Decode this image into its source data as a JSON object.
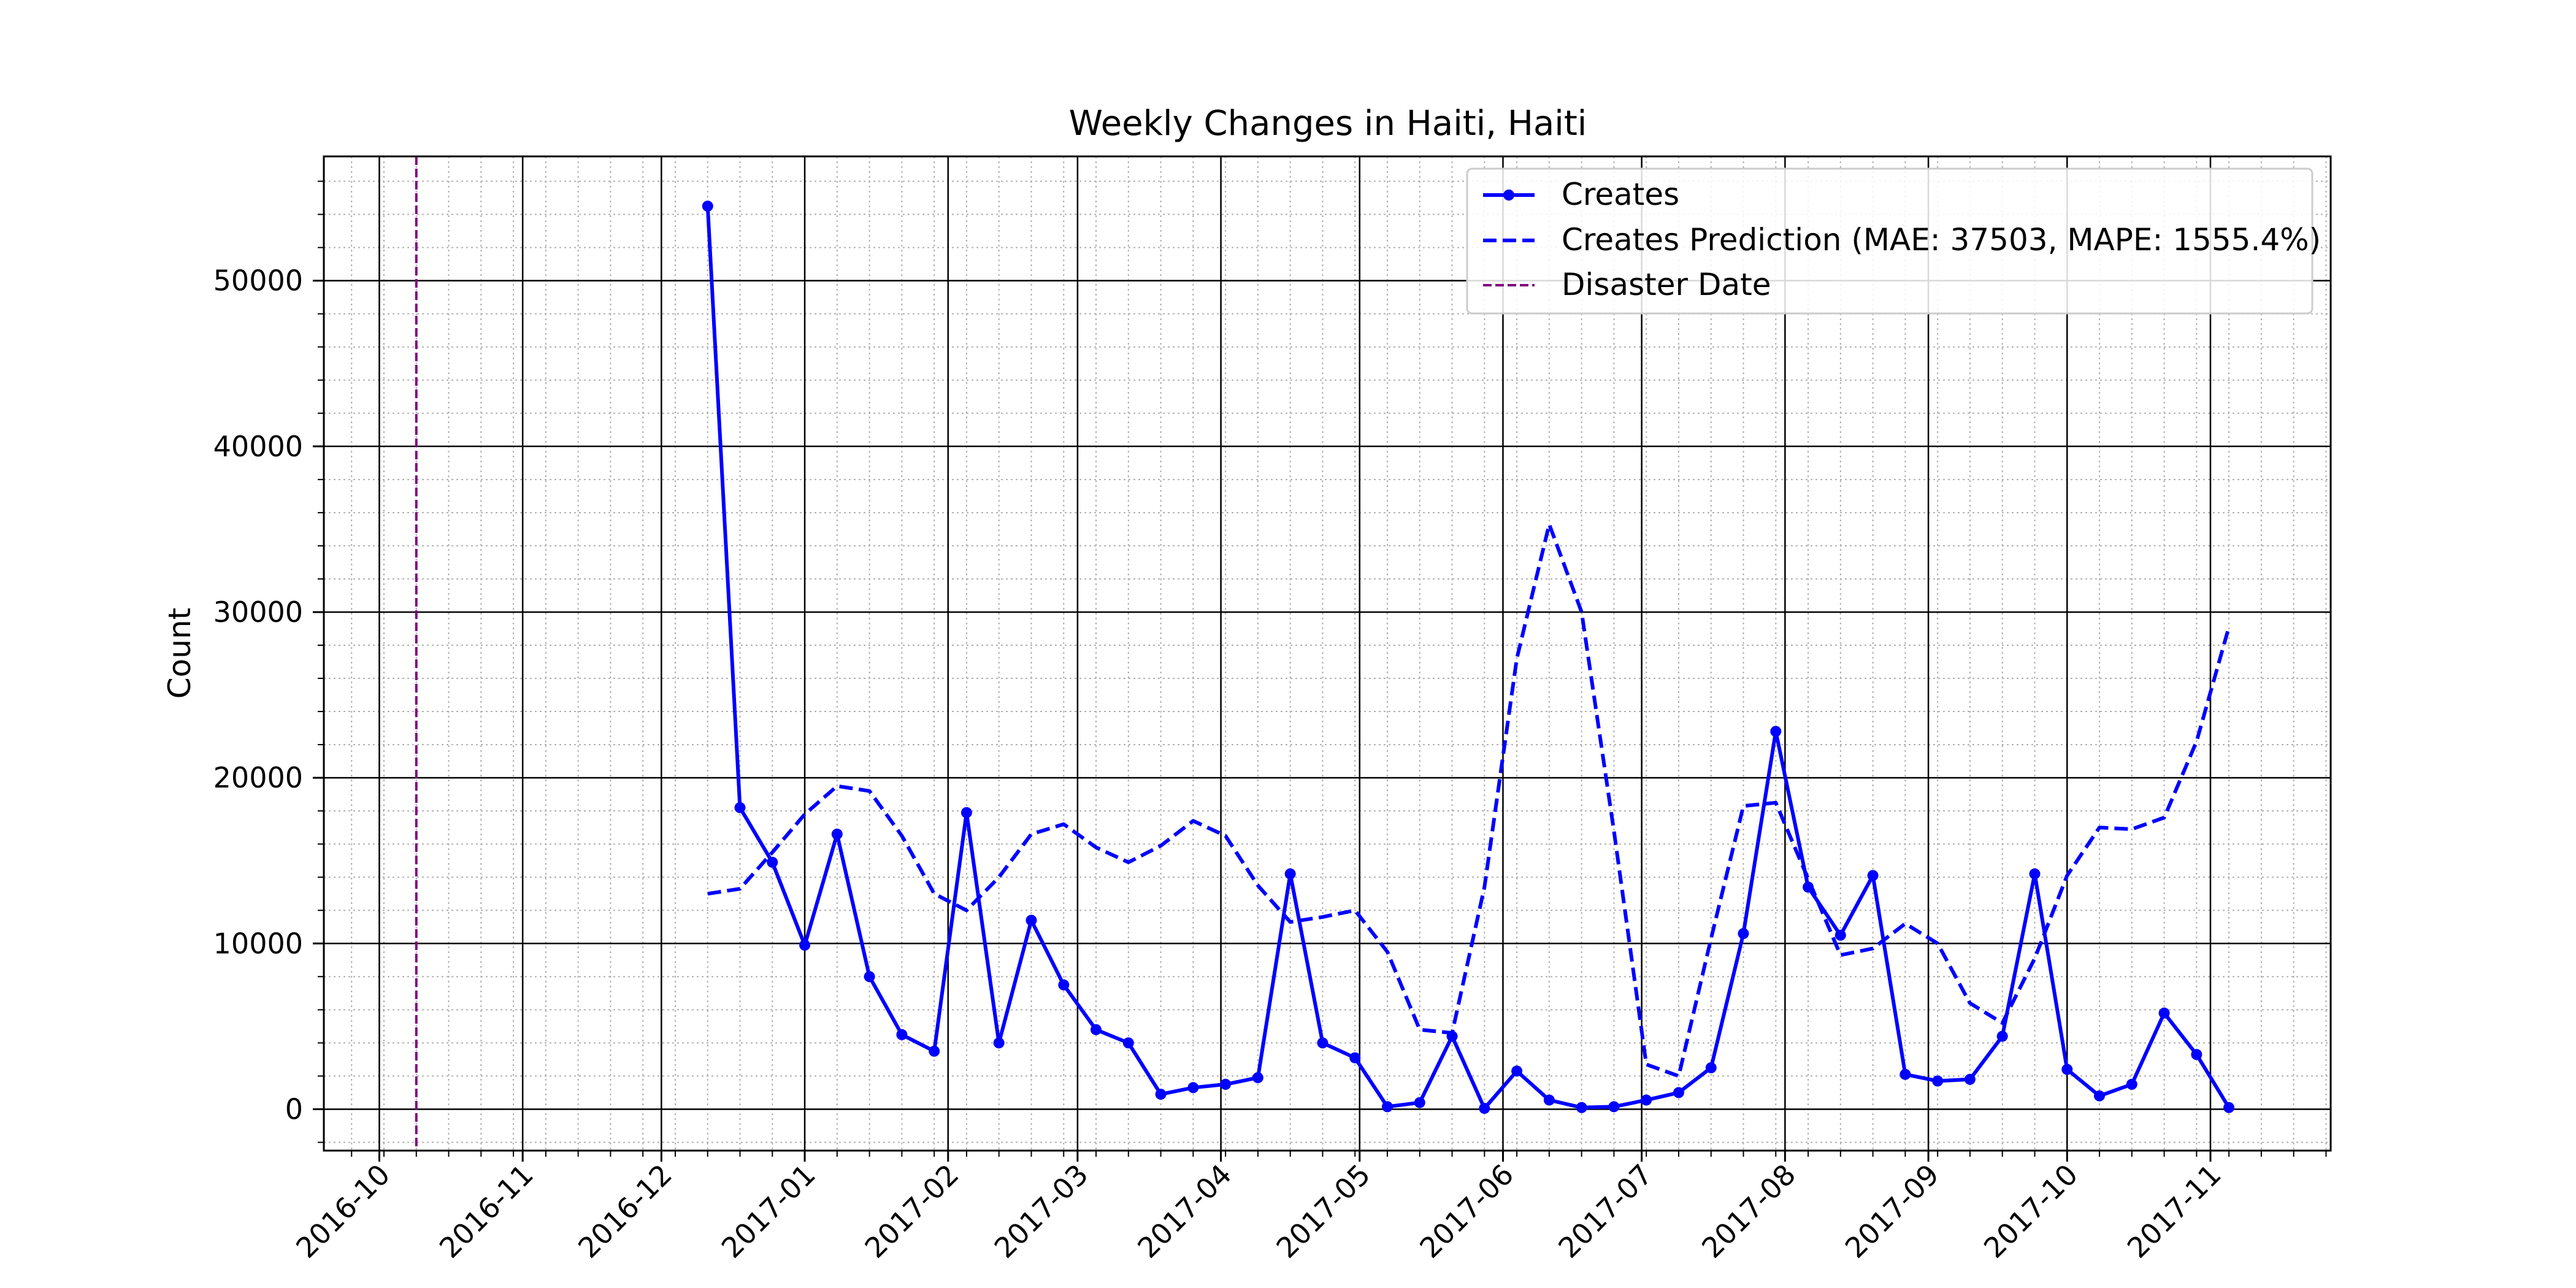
{
  "chart_data": {
    "type": "line",
    "title": "Weekly Changes in Haiti, Haiti",
    "xlabel": "",
    "ylabel": "Count",
    "x_tick_labels": [
      "2016-10",
      "2016-11",
      "2016-12",
      "2017-01",
      "2017-02",
      "2017-03",
      "2017-04",
      "2017-05",
      "2017-06",
      "2017-07",
      "2017-08",
      "2017-09",
      "2017-10",
      "2017-11"
    ],
    "x_ticks": [
      "2016-10-01",
      "2016-11-01",
      "2016-12-01",
      "2017-01-01",
      "2017-02-01",
      "2017-03-01",
      "2017-04-01",
      "2017-05-01",
      "2017-06-01",
      "2017-07-01",
      "2017-08-01",
      "2017-09-01",
      "2017-10-01",
      "2017-11-01"
    ],
    "xlim": [
      "2016-09-19",
      "2017-11-27"
    ],
    "y_ticks": [
      0,
      10000,
      20000,
      30000,
      40000,
      50000
    ],
    "y_tick_labels": [
      "0",
      "10000",
      "20000",
      "30000",
      "40000",
      "50000"
    ],
    "ylim": [
      -2500,
      57500
    ],
    "grid": "major solid, minor dotted",
    "legend_position": "top-right",
    "disaster_date": "2016-10-09",
    "series": [
      {
        "name": "Creates",
        "color": "#0000ff",
        "style": "solid-markers",
        "x": [
          "2016-12-11",
          "2016-12-18",
          "2016-12-25",
          "2017-01-01",
          "2017-01-08",
          "2017-01-15",
          "2017-01-22",
          "2017-01-29",
          "2017-02-05",
          "2017-02-12",
          "2017-02-19",
          "2017-02-26",
          "2017-03-05",
          "2017-03-12",
          "2017-03-19",
          "2017-03-26",
          "2017-04-02",
          "2017-04-09",
          "2017-04-16",
          "2017-04-23",
          "2017-04-30",
          "2017-05-07",
          "2017-05-14",
          "2017-05-21",
          "2017-05-28",
          "2017-06-04",
          "2017-06-11",
          "2017-06-18",
          "2017-06-25",
          "2017-07-02",
          "2017-07-09",
          "2017-07-16",
          "2017-07-23",
          "2017-07-30",
          "2017-08-06",
          "2017-08-13",
          "2017-08-20",
          "2017-08-27",
          "2017-09-03",
          "2017-09-10",
          "2017-09-17",
          "2017-09-24",
          "2017-10-01",
          "2017-10-08",
          "2017-10-15",
          "2017-10-22",
          "2017-10-29",
          "2017-11-05"
        ],
        "values": [
          54500,
          18200,
          14900,
          9900,
          16600,
          8000,
          4500,
          3500,
          17900,
          4000,
          11400,
          7500,
          4800,
          4000,
          900,
          1300,
          1500,
          1900,
          14200,
          4000,
          3100,
          150,
          400,
          4400,
          50,
          2300,
          550,
          100,
          150,
          550,
          1000,
          2500,
          10600,
          22800,
          13400,
          10500,
          14100,
          2100,
          1700,
          1800,
          4400,
          14200,
          2400,
          800,
          1500,
          5800,
          3300,
          100
        ]
      },
      {
        "name": "Creates Prediction (MAE: 37503, MAPE: 1555.4%)",
        "color": "#0000ff",
        "style": "dashed",
        "x": [
          "2016-12-11",
          "2016-12-18",
          "2016-12-25",
          "2017-01-01",
          "2017-01-08",
          "2017-01-15",
          "2017-01-22",
          "2017-01-29",
          "2017-02-05",
          "2017-02-12",
          "2017-02-19",
          "2017-02-26",
          "2017-03-05",
          "2017-03-12",
          "2017-03-19",
          "2017-03-26",
          "2017-04-02",
          "2017-04-09",
          "2017-04-16",
          "2017-04-23",
          "2017-04-30",
          "2017-05-07",
          "2017-05-14",
          "2017-05-21",
          "2017-05-28",
          "2017-06-04",
          "2017-06-11",
          "2017-06-18",
          "2017-06-25",
          "2017-07-02",
          "2017-07-09",
          "2017-07-16",
          "2017-07-23",
          "2017-07-30",
          "2017-08-06",
          "2017-08-13",
          "2017-08-20",
          "2017-08-27",
          "2017-09-03",
          "2017-09-10",
          "2017-09-17",
          "2017-09-24",
          "2017-10-01",
          "2017-10-08",
          "2017-10-15",
          "2017-10-22",
          "2017-10-29",
          "2017-11-05"
        ],
        "values": [
          13000,
          13300,
          15500,
          17800,
          19500,
          19200,
          16500,
          13000,
          12000,
          14000,
          16600,
          17200,
          15800,
          14900,
          15900,
          17400,
          16500,
          13500,
          11300,
          11600,
          12000,
          9500,
          4800,
          4600,
          13400,
          27200,
          35300,
          30000,
          16800,
          2700,
          2000,
          10300,
          18300,
          18500,
          13900,
          9300,
          9700,
          11200,
          10000,
          6400,
          5200,
          9100,
          14100,
          17000,
          16900,
          17600,
          22200,
          29100
        ]
      }
    ]
  },
  "legend": {
    "creates": "Creates",
    "prediction": "Creates Prediction (MAE: 37503, MAPE: 1555.4%)",
    "disaster": "Disaster Date"
  },
  "colors": {
    "series": "#0000ff",
    "disaster": "#800080",
    "major_grid": "#000000",
    "minor_grid": "#b0b0b0"
  }
}
